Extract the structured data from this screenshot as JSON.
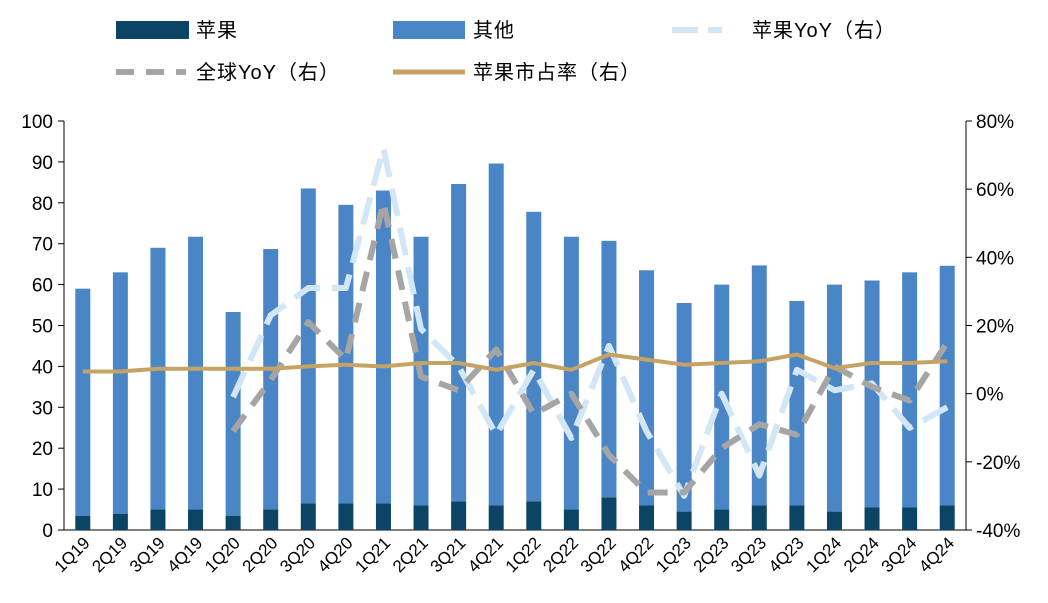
{
  "chart_data": {
    "type": "bar",
    "categories": [
      "1Q19",
      "2Q19",
      "3Q19",
      "4Q19",
      "1Q20",
      "2Q20",
      "3Q20",
      "4Q20",
      "1Q21",
      "2Q21",
      "3Q21",
      "4Q21",
      "1Q22",
      "2Q22",
      "3Q22",
      "4Q22",
      "1Q23",
      "2Q23",
      "3Q23",
      "4Q23",
      "1Q24",
      "2Q24",
      "3Q24",
      "4Q24"
    ],
    "series": [
      {
        "name": "苹果",
        "kind": "bar",
        "stack": "total",
        "axis": "left",
        "color": "#0c4466",
        "values": [
          3.5,
          4.0,
          5.0,
          5.0,
          3.5,
          5.0,
          6.5,
          6.5,
          6.5,
          6.0,
          7.0,
          6.0,
          7.0,
          5.0,
          8.0,
          6.0,
          4.5,
          5.0,
          6.0,
          6.0,
          4.5,
          5.5,
          5.5,
          6.0
        ]
      },
      {
        "name": "其他",
        "kind": "bar",
        "stack": "total",
        "axis": "left",
        "color": "#4a86c6",
        "values": [
          55.5,
          59.0,
          64.0,
          66.7,
          49.8,
          63.7,
          77.0,
          73.0,
          76.5,
          65.7,
          77.6,
          83.6,
          70.8,
          66.7,
          62.7,
          57.5,
          51.0,
          55.0,
          58.7,
          50.0,
          55.5,
          55.5,
          57.5,
          58.6
        ]
      },
      {
        "name": "苹果YoY（右）",
        "kind": "line",
        "axis": "right",
        "color": "#d3e6f5",
        "dash": "long",
        "values": [
          null,
          null,
          null,
          null,
          -1,
          23,
          31,
          31,
          72,
          19,
          8,
          -12,
          7,
          -13,
          14,
          -11,
          -30,
          0,
          -24,
          7,
          1,
          3,
          -10,
          -4
        ]
      },
      {
        "name": "全球YoY（右）",
        "kind": "line",
        "axis": "right",
        "color": "#a5a5a5",
        "dash": "medium",
        "values": [
          null,
          null,
          null,
          null,
          -11,
          4,
          21,
          10,
          56,
          5,
          1,
          13,
          -6,
          0,
          -18,
          -29,
          -29,
          -16,
          -9,
          -12,
          8,
          2,
          -2,
          15
        ]
      },
      {
        "name": "苹果市占率（右）",
        "kind": "line",
        "axis": "right",
        "color": "#c6a365",
        "dash": "solid",
        "values": [
          6.5,
          6.5,
          7.3,
          7.3,
          7.3,
          7.3,
          8.0,
          8.5,
          8.0,
          9.0,
          9.0,
          7.0,
          9.0,
          7.0,
          11.5,
          10.0,
          8.5,
          9.0,
          9.5,
          11.5,
          7.5,
          9.0,
          9.0,
          9.5
        ]
      }
    ],
    "yAxisLeft": {
      "min": 0,
      "max": 100,
      "step": 10,
      "ticks": [
        "0",
        "10",
        "20",
        "30",
        "40",
        "50",
        "60",
        "70",
        "80",
        "90",
        "100"
      ]
    },
    "yAxisRight": {
      "min": -40,
      "max": 80,
      "step": 20,
      "ticks": [
        "-40%",
        "-20%",
        "0%",
        "20%",
        "40%",
        "60%",
        "80%"
      ]
    },
    "legend": {
      "position": "top",
      "items": [
        "苹果",
        "其他",
        "苹果YoY（右）",
        "全球YoY（右）",
        "苹果市占率（右）"
      ]
    },
    "grid": false
  }
}
